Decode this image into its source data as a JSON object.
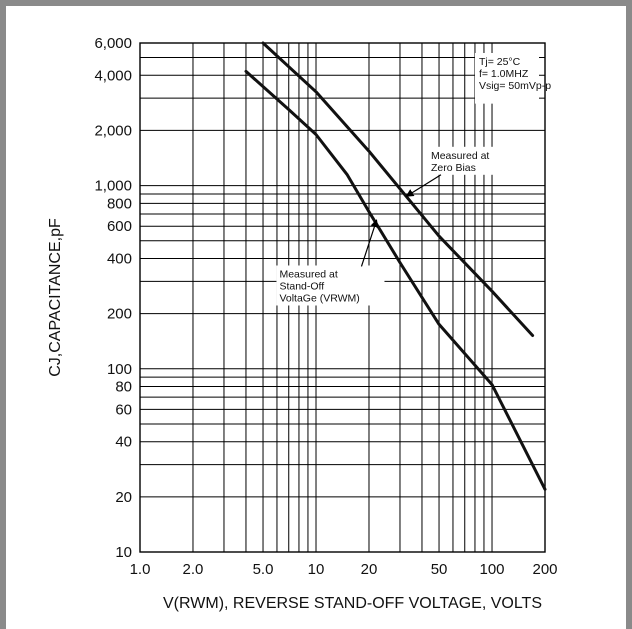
{
  "chart_data": {
    "type": "line",
    "xscale": "log",
    "yscale": "log",
    "xlim": [
      1,
      200
    ],
    "ylim": [
      10,
      6000
    ],
    "grid": true,
    "xlabel": "V(RWM), REVERSE STAND-OFF VOLTAGE, VOLTS",
    "ylabel": "CJ,CAPACITANCE,pF",
    "x_ticks": [
      {
        "v": 1,
        "label": "1.0"
      },
      {
        "v": 2,
        "label": "2.0"
      },
      {
        "v": 5,
        "label": "5.0"
      },
      {
        "v": 10,
        "label": "10"
      },
      {
        "v": 20,
        "label": "20"
      },
      {
        "v": 50,
        "label": "50"
      },
      {
        "v": 100,
        "label": "100"
      },
      {
        "v": 200,
        "label": "200"
      }
    ],
    "y_ticks": [
      {
        "v": 10,
        "label": "10"
      },
      {
        "v": 20,
        "label": "20"
      },
      {
        "v": 40,
        "label": "40"
      },
      {
        "v": 60,
        "label": "60"
      },
      {
        "v": 80,
        "label": "80"
      },
      {
        "v": 100,
        "label": "100"
      },
      {
        "v": 200,
        "label": "200"
      },
      {
        "v": 400,
        "label": "400"
      },
      {
        "v": 600,
        "label": "600"
      },
      {
        "v": 800,
        "label": "800"
      },
      {
        "v": 1000,
        "label": "1,000"
      },
      {
        "v": 2000,
        "label": "2,000"
      },
      {
        "v": 4000,
        "label": "4,000"
      },
      {
        "v": 6000,
        "label": "6,000"
      }
    ],
    "x_gridlines": [
      1,
      2,
      3,
      4,
      5,
      6,
      7,
      8,
      9,
      10,
      20,
      30,
      40,
      50,
      60,
      70,
      80,
      90,
      100,
      200
    ],
    "y_gridlines": [
      10,
      20,
      30,
      40,
      50,
      60,
      70,
      80,
      90,
      100,
      200,
      300,
      400,
      500,
      600,
      700,
      800,
      900,
      1000,
      2000,
      3000,
      4000,
      5000,
      6000
    ],
    "series": [
      {
        "name": "Measured at Zero Bias",
        "x": [
          5,
          10,
          20,
          50,
          100,
          170
        ],
        "y": [
          6000,
          3250,
          1540,
          530,
          265,
          152
        ]
      },
      {
        "name": "Measured at Stand-Off Voltage (VRWM)",
        "x": [
          4,
          7,
          10,
          15,
          20,
          30,
          50,
          100,
          200
        ],
        "y": [
          4200,
          2600,
          1900,
          1150,
          720,
          380,
          175,
          82,
          22
        ]
      }
    ],
    "conditions": [
      "Tj= 25°C",
      "f= 1.0MHZ",
      "Vsig= 50mVp-p"
    ],
    "annotations": [
      {
        "lines": [
          "Measured at",
          "Zero Bias"
        ],
        "target_x": 33,
        "target_y": 880
      },
      {
        "lines": [
          "Measured at",
          "Stand-Off",
          "VoltaGe (VRWM)"
        ],
        "target_x": 22,
        "target_y": 640
      }
    ]
  }
}
